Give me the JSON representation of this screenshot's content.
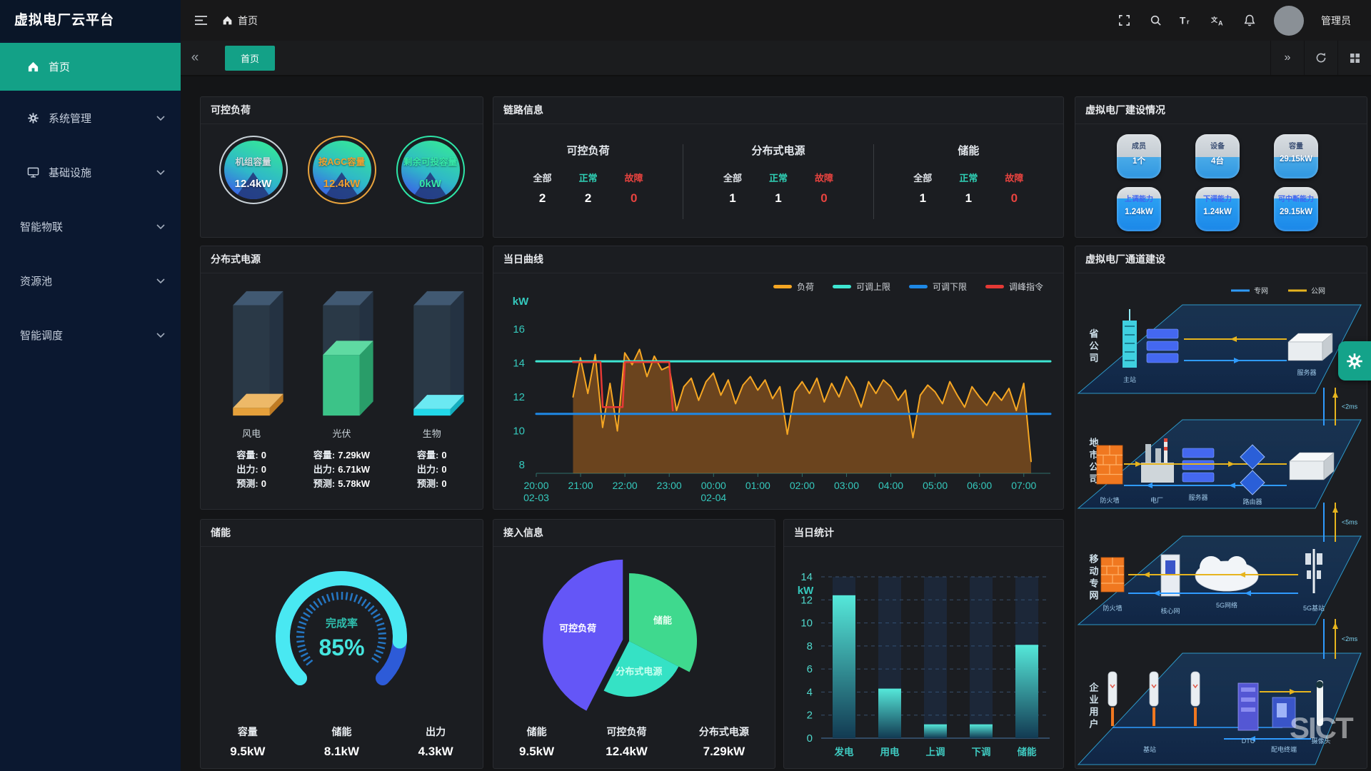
{
  "app": {
    "title": "虚拟电厂云平台",
    "breadcrumb_home": "首页",
    "user": "管理员"
  },
  "topbar_icons": [
    "collapse-menu-icon",
    "home-icon",
    "fullscreen-icon",
    "search-icon",
    "font-size-icon",
    "translate-icon",
    "bell-icon"
  ],
  "tab_tools": [
    "chevron-right-icon",
    "refresh-icon",
    "grid-icon"
  ],
  "sidebar": {
    "items": [
      {
        "label": "首页",
        "icon": "home-icon",
        "active": true,
        "expandable": false
      },
      {
        "label": "系统管理",
        "icon": "gear-icon",
        "active": false,
        "expandable": true
      },
      {
        "label": "基础设施",
        "icon": "monitor-icon",
        "active": false,
        "expandable": true
      },
      {
        "label": "智能物联",
        "icon": "",
        "active": false,
        "expandable": true
      },
      {
        "label": "资源池",
        "icon": "",
        "active": false,
        "expandable": true
      },
      {
        "label": "智能调度",
        "icon": "",
        "active": false,
        "expandable": true
      }
    ]
  },
  "tabbar": {
    "active_tab": "首页"
  },
  "colors": {
    "accent_teal": "#13a187",
    "load_orange": "#f5a623",
    "limit_cyan": "#3ee6d2",
    "limit_blue": "#1e88e5",
    "command_red": "#e53935",
    "normal_teal": "#2fd0b5",
    "fault_red": "#e8433f"
  },
  "panels": {
    "controllable_load": {
      "title": "可控负荷",
      "gauges": [
        {
          "label": "机组容量",
          "value": "12.4kW",
          "ring": "#c9d2d8"
        },
        {
          "label": "按AGC容量",
          "value": "12.4kW",
          "ring": "#e8a33d"
        },
        {
          "label": "剩余可投容量",
          "value": "0kW",
          "ring": "#2ee6a8"
        }
      ]
    },
    "link_info": {
      "title": "链路信息",
      "col_labels": {
        "all": "全部",
        "normal": "正常",
        "fault": "故障"
      },
      "groups": [
        {
          "name": "可控负荷",
          "all": "2",
          "normal": "2",
          "fault": "0"
        },
        {
          "name": "分布式电源",
          "all": "1",
          "normal": "1",
          "fault": "0"
        },
        {
          "name": "储能",
          "all": "1",
          "normal": "1",
          "fault": "0"
        }
      ]
    },
    "vpp_build": {
      "title": "虚拟电厂建设情况",
      "tiles": [
        {
          "label": "成员",
          "value": "1个"
        },
        {
          "label": "设备",
          "value": "4台"
        },
        {
          "label": "容量",
          "value": "29.15kW"
        },
        {
          "label": "上调能力",
          "value": "1.24kW"
        },
        {
          "label": "下调能力",
          "value": "1.24kW"
        },
        {
          "label": "可中断能力",
          "value": "29.15kW"
        }
      ]
    },
    "distributed_power": {
      "title": "分布式电源",
      "row_labels": {
        "capacity": "容量:",
        "output": "出力:",
        "forecast": "预测:"
      },
      "sources": [
        {
          "name": "风电",
          "capacity": "0",
          "output": "0",
          "forecast": "0",
          "fill_percent": 7,
          "front": "#f5a93b",
          "top": "#f8c06a",
          "side": "#c87f22"
        },
        {
          "name": "光伏",
          "capacity": "7.29kW",
          "output": "6.71kW",
          "forecast": "5.78kW",
          "fill_percent": 55,
          "front": "#3ecf8e",
          "top": "#62e3a8",
          "side": "#2aa36b"
        },
        {
          "name": "生物",
          "capacity": "0",
          "output": "0",
          "forecast": "0",
          "fill_percent": 6,
          "front": "#22e6f7",
          "top": "#6ff2fc",
          "side": "#14b5c6"
        }
      ]
    },
    "daily_curve": {
      "title": "当日曲线"
    },
    "channel": {
      "title": "虚拟电厂通道建设",
      "legend": [
        {
          "label": "专网",
          "color": "#2f9bff"
        },
        {
          "label": "公网",
          "color": "#e6b41e"
        }
      ],
      "layers": [
        {
          "name": "省公司",
          "nodes": [
            "主站",
            "服务器"
          ]
        },
        {
          "name": "地市公司",
          "nodes": [
            "防火墙",
            "电厂",
            "服务器",
            "路由器"
          ]
        },
        {
          "name": "移动专网",
          "nodes": [
            "防火墙",
            "核心网",
            "5G网络",
            "5G基站"
          ]
        },
        {
          "name": "企业用户",
          "nodes": [
            "基站",
            "DTU",
            "配电终端",
            "摄像头"
          ]
        }
      ],
      "latency_chips": [
        "<2ms",
        "<5ms",
        "<2ms"
      ]
    },
    "storage": {
      "title": "储能",
      "gauge": {
        "label": "完成率",
        "value": "85%",
        "percent": 85
      },
      "stats": [
        {
          "label": "容量",
          "value": "9.5kW"
        },
        {
          "label": "储能",
          "value": "8.1kW"
        },
        {
          "label": "出力",
          "value": "4.3kW"
        }
      ]
    },
    "access_info": {
      "title": "接入信息",
      "stats": [
        {
          "label": "储能",
          "value": "9.5kW"
        },
        {
          "label": "可控负荷",
          "value": "12.4kW"
        },
        {
          "label": "分布式电源",
          "value": "7.29kW"
        }
      ]
    },
    "daily_stats": {
      "title": "当日统计"
    }
  },
  "watermark": "SICT",
  "chart_data": [
    {
      "id": "daily_curve",
      "type": "line",
      "title": "当日曲线",
      "ylabel": "kW",
      "ylim": [
        7.5,
        16.5
      ],
      "yticks": [
        8,
        10,
        12,
        14,
        16
      ],
      "grid": false,
      "legend_position": "top",
      "xticks": [
        {
          "t": 20,
          "label": "20:00",
          "sub": "02-03"
        },
        {
          "t": 21,
          "label": "21:00"
        },
        {
          "t": 22,
          "label": "22:00"
        },
        {
          "t": 23,
          "label": "23:00"
        },
        {
          "t": 24,
          "label": "00:00",
          "sub": "02-04"
        },
        {
          "t": 25,
          "label": "01:00"
        },
        {
          "t": 26,
          "label": "02:00"
        },
        {
          "t": 27,
          "label": "03:00"
        },
        {
          "t": 28,
          "label": "04:00"
        },
        {
          "t": 29,
          "label": "05:00"
        },
        {
          "t": 30,
          "label": "06:00"
        },
        {
          "t": 31,
          "label": "07:00"
        }
      ],
      "series": [
        {
          "name": "负荷",
          "color": "#f5a623",
          "width": 2,
          "area": true,
          "x_start": 20.83,
          "x_step": 0.1667,
          "values": [
            12.0,
            14.3,
            12.2,
            14.5,
            10.2,
            12.8,
            10.0,
            14.6,
            13.9,
            14.8,
            13.2,
            14.4,
            13.6,
            13.8,
            11.2,
            12.6,
            13.1,
            11.8,
            12.9,
            13.4,
            12.1,
            13.0,
            11.6,
            12.7,
            13.2,
            12.4,
            13.0,
            11.9,
            12.6,
            9.8,
            12.3,
            12.9,
            12.2,
            13.1,
            11.7,
            12.8,
            12.0,
            13.2,
            12.5,
            11.4,
            12.9,
            12.2,
            13.0,
            12.6,
            11.8,
            12.4,
            9.6,
            12.1,
            12.7,
            12.3,
            11.6,
            12.9,
            12.1,
            11.4,
            12.6,
            12.0,
            11.5,
            12.3,
            11.8,
            12.5,
            11.2,
            12.8,
            8.2
          ]
        },
        {
          "name": "可调上限",
          "color": "#3ee6d2",
          "width": 3,
          "points": [
            [
              20,
              14.1
            ],
            [
              31.6,
              14.1
            ]
          ]
        },
        {
          "name": "可调下限",
          "color": "#1e88e5",
          "width": 3,
          "points": [
            [
              20,
              11.0
            ],
            [
              31.6,
              11.0
            ]
          ]
        },
        {
          "name": "调峰指令",
          "color": "#e53935",
          "width": 2.5,
          "points": [
            [
              20.83,
              14.05
            ],
            [
              21.45,
              14.05
            ],
            [
              21.5,
              11.4
            ],
            [
              21.95,
              11.4
            ],
            [
              22.0,
              14.05
            ],
            [
              23.0,
              14.05
            ],
            [
              23.08,
              11.2
            ]
          ]
        }
      ]
    },
    {
      "id": "daily_stats",
      "type": "bar",
      "title": "当日统计",
      "ylabel": "kW",
      "ylim": [
        0,
        14
      ],
      "ytick_step": 2,
      "grid": "dashed",
      "categories": [
        "发电",
        "用电",
        "上调",
        "下调",
        "储能"
      ],
      "values": [
        12.4,
        4.3,
        1.2,
        1.2,
        8.1
      ]
    },
    {
      "id": "access_pie",
      "type": "pie",
      "title": "接入信息",
      "slices": [
        {
          "label": "储能",
          "value": 9.5,
          "color": "#3fd98e",
          "radius": 95,
          "label_color": "#eafff3"
        },
        {
          "label": "分布式电源",
          "value": 7.29,
          "color": "#35e2c5",
          "radius": 78,
          "label_color": "#c9fff0"
        },
        {
          "label": "可控负荷",
          "value": 12.4,
          "color": "#6456f7",
          "radius": 112,
          "explode": true,
          "label_color": "#ffffff"
        }
      ]
    }
  ]
}
